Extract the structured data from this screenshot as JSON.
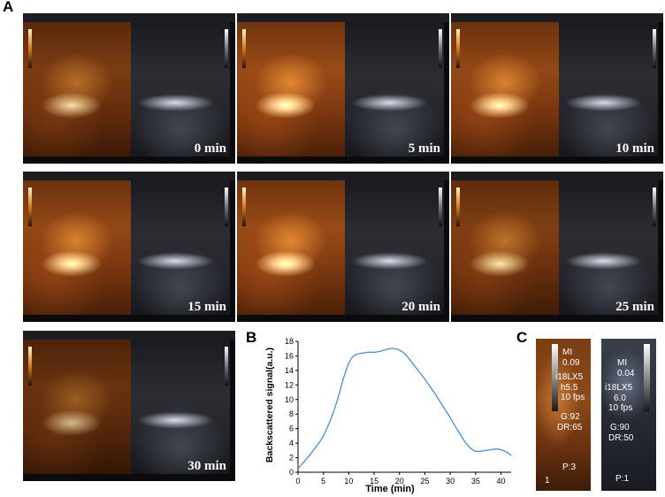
{
  "panel_labels": {
    "a": "A",
    "b": "B",
    "c": "C"
  },
  "panel_a": {
    "time_labels": [
      "0 min",
      "5 min",
      "10 min",
      "15 min",
      "20 min",
      "25 min",
      "30 min"
    ]
  },
  "panel_c": {
    "left": {
      "mi_label": "MI",
      "mi_value": "0.09",
      "probe": "i18LX5",
      "freq": "h5.5",
      "fps": "10 fps",
      "gain": "G:92",
      "dr": "DR:65",
      "p": "P:3",
      "marker": "1"
    },
    "right": {
      "mi_label": "MI",
      "mi_value": "0.04",
      "probe": "i18LX5",
      "freq": "6.0",
      "fps": "10 fps",
      "gain": "G:90",
      "dr": "DR:50",
      "p": "P:1"
    }
  },
  "colors": {
    "line": "#4a8fd0",
    "axis": "#000000"
  },
  "chart_data": {
    "type": "line",
    "xlabel": "Time (min)",
    "ylabel": "Backscattered signal(a.u.)",
    "xlim": [
      0,
      42
    ],
    "ylim": [
      0,
      18
    ],
    "xticks": [
      0,
      5,
      10,
      15,
      20,
      25,
      30,
      35,
      40
    ],
    "yticks": [
      0,
      2,
      4,
      6,
      8,
      10,
      12,
      14,
      16,
      18
    ],
    "series": [
      {
        "x": [
          0,
          1,
          2,
          3,
          4,
          5,
          6,
          7,
          8,
          9,
          10,
          11,
          12,
          13,
          14,
          15,
          16,
          17,
          18,
          19,
          20,
          21,
          22,
          23,
          24,
          25,
          26,
          27,
          28,
          29,
          30,
          31,
          32,
          33,
          34,
          35,
          36,
          37,
          38,
          39,
          40,
          41,
          42
        ],
        "y": [
          0.5,
          1.3,
          2.1,
          3.0,
          3.9,
          5.0,
          6.5,
          8.3,
          10.5,
          13.0,
          15.0,
          16.0,
          16.3,
          16.4,
          16.5,
          16.5,
          16.6,
          16.8,
          17.0,
          17.0,
          16.8,
          16.3,
          15.5,
          14.6,
          13.7,
          12.8,
          11.8,
          10.8,
          9.7,
          8.6,
          7.5,
          6.3,
          5.2,
          4.1,
          3.3,
          2.9,
          2.9,
          3.0,
          3.1,
          3.2,
          3.1,
          2.8,
          2.3
        ]
      }
    ]
  }
}
